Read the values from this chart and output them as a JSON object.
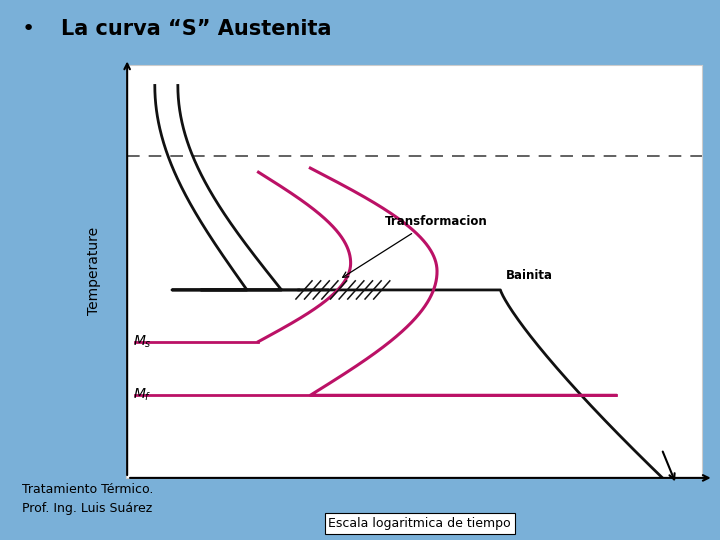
{
  "title": "La curva “S” Austenita",
  "footer_line1": "Tratamiento Térmico.",
  "footer_line2": "Prof. Ing. Luis Suárez",
  "xlabel": "Escala logaritmica de tiempo",
  "ylabel": "Temperature",
  "bg_color_top": "#7ab0d8",
  "bg_color_mid": "#9fc4e0",
  "panel_color": "#ffffff",
  "black_curve_color": "#111111",
  "pink_curve_color": "#bb1166",
  "bainite_label": "Bainita",
  "transform_label": "Transformacion",
  "dashed_color": "#555555",
  "bullet": "•"
}
